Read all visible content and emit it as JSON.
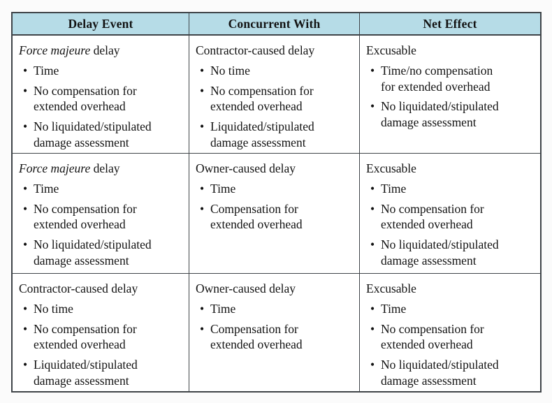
{
  "page": {
    "background": "#fbfbfb"
  },
  "table": {
    "bullet_char": "•",
    "header_bg": "#b6dce7",
    "border_color": "#3f4448",
    "columns": [
      "Delay Event",
      "Concurrent With",
      "Net Effect"
    ],
    "rows": [
      {
        "cells": [
          {
            "title_italic": "Force majeure",
            "title_rest": " delay",
            "bullets": [
              "Time",
              "No compensation for\nextended overhead",
              "No liquidated/stipulated\ndamage assessment"
            ]
          },
          {
            "title_italic": "",
            "title_rest": "Contractor-caused delay",
            "bullets": [
              "No time",
              "No compensation for\nextended overhead",
              "Liquidated/stipulated\ndamage assessment"
            ]
          },
          {
            "title_italic": "",
            "title_rest": "Excusable",
            "bullets": [
              "Time/no compensation\nfor extended overhead",
              "No liquidated/stipulated\ndamage assessment"
            ]
          }
        ]
      },
      {
        "cells": [
          {
            "title_italic": "Force majeure",
            "title_rest": " delay",
            "bullets": [
              "Time",
              "No compensation for\nextended overhead",
              "No liquidated/stipulated\ndamage assessment"
            ]
          },
          {
            "title_italic": "",
            "title_rest": "Owner-caused delay",
            "bullets": [
              "Time",
              "Compensation for\nextended overhead"
            ]
          },
          {
            "title_italic": "",
            "title_rest": "Excusable",
            "bullets": [
              "Time",
              "No compensation for\nextended overhead",
              "No liquidated/stipulated\ndamage assessment"
            ]
          }
        ]
      },
      {
        "cells": [
          {
            "title_italic": "",
            "title_rest": "Contractor-caused delay",
            "bullets": [
              "No time",
              "No compensation for\nextended overhead",
              "Liquidated/stipulated\ndamage assessment"
            ]
          },
          {
            "title_italic": "",
            "title_rest": "Owner-caused delay",
            "bullets": [
              "Time",
              "Compensation for\nextended overhead"
            ]
          },
          {
            "title_italic": "",
            "title_rest": "Excusable",
            "bullets": [
              "Time",
              "No compensation for\nextended overhead",
              "No liquidated/stipulated\ndamage assessment"
            ]
          }
        ]
      }
    ]
  }
}
